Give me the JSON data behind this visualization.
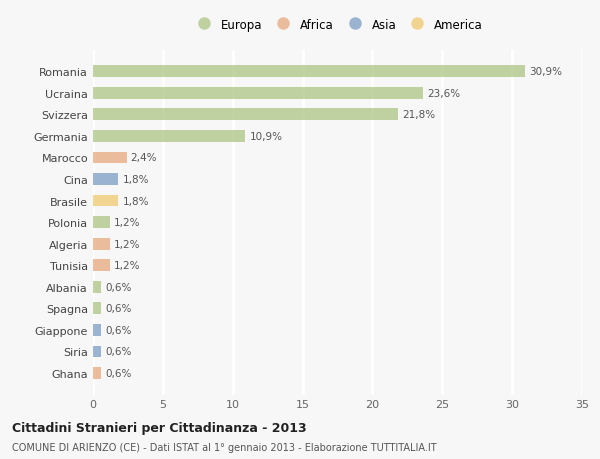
{
  "countries": [
    "Romania",
    "Ucraina",
    "Svizzera",
    "Germania",
    "Marocco",
    "Cina",
    "Brasile",
    "Polonia",
    "Algeria",
    "Tunisia",
    "Albania",
    "Spagna",
    "Giappone",
    "Siria",
    "Ghana"
  ],
  "values": [
    30.9,
    23.6,
    21.8,
    10.9,
    2.4,
    1.8,
    1.8,
    1.2,
    1.2,
    1.2,
    0.6,
    0.6,
    0.6,
    0.6,
    0.6
  ],
  "labels": [
    "30,9%",
    "23,6%",
    "21,8%",
    "10,9%",
    "2,4%",
    "1,8%",
    "1,8%",
    "1,2%",
    "1,2%",
    "1,2%",
    "0,6%",
    "0,6%",
    "0,6%",
    "0,6%",
    "0,6%"
  ],
  "continents": [
    "Europa",
    "Europa",
    "Europa",
    "Europa",
    "Africa",
    "Asia",
    "America",
    "Europa",
    "Africa",
    "Africa",
    "Europa",
    "Europa",
    "Asia",
    "Asia",
    "Africa"
  ],
  "colors": {
    "Europa": "#adc585",
    "Africa": "#e8a87c",
    "Asia": "#7a9cc4",
    "America": "#f0c96e"
  },
  "legend_order": [
    "Europa",
    "Africa",
    "Asia",
    "America"
  ],
  "title": "Cittadini Stranieri per Cittadinanza - 2013",
  "subtitle": "COMUNE DI ARIENZO (CE) - Dati ISTAT al 1° gennaio 2013 - Elaborazione TUTTITALIA.IT",
  "xlim": [
    0,
    35
  ],
  "xticks": [
    0,
    5,
    10,
    15,
    20,
    25,
    30,
    35
  ],
  "background_color": "#f7f7f7",
  "grid_color": "#ffffff",
  "bar_alpha": 0.75,
  "bar_height": 0.55
}
